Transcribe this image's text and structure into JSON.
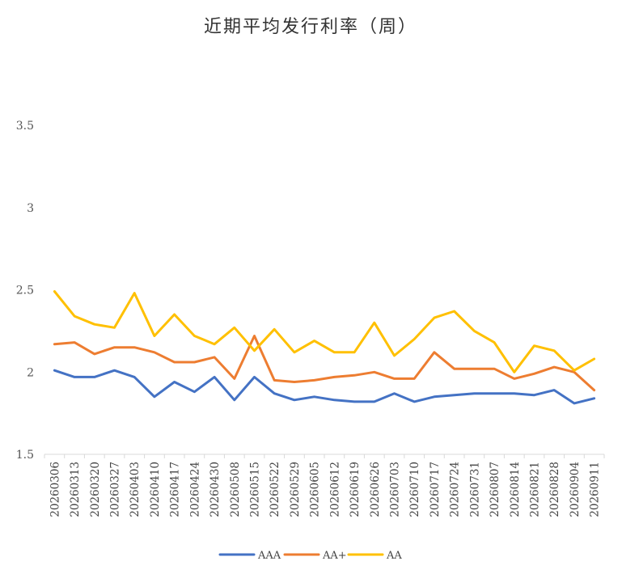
{
  "chart_data": {
    "type": "line",
    "title": "近期平均发行利率（周）",
    "xlabel": "",
    "ylabel": "",
    "ylim": [
      1.5,
      3.5
    ],
    "yticks": [
      "1.5",
      "2",
      "2.5",
      "3",
      "3.5"
    ],
    "grid": false,
    "legend_position": "bottom",
    "categories": [
      "20260306",
      "20260313",
      "20260320",
      "20260327",
      "20260403",
      "20260410",
      "20260417",
      "20260424",
      "20260430",
      "20260508",
      "20260515",
      "20260522",
      "20260529",
      "20260605",
      "20260612",
      "20260619",
      "20260626",
      "20260703",
      "20260710",
      "20260717",
      "20260724",
      "20260731",
      "20260807",
      "20260814",
      "20260821",
      "20260828",
      "20260904",
      "20260911"
    ],
    "series": [
      {
        "name": "AAA",
        "color": "#4472C4",
        "values": [
          2.01,
          1.97,
          1.97,
          2.01,
          1.97,
          1.85,
          1.94,
          1.88,
          1.97,
          1.83,
          1.97,
          1.87,
          1.83,
          1.85,
          1.83,
          1.82,
          1.82,
          1.87,
          1.82,
          1.85,
          1.86,
          1.87,
          1.87,
          1.87,
          1.86,
          1.89,
          1.81,
          1.84
        ]
      },
      {
        "name": "AA+",
        "color": "#ED7D31",
        "values": [
          2.17,
          2.18,
          2.11,
          2.15,
          2.15,
          2.12,
          2.06,
          2.06,
          2.09,
          1.96,
          2.22,
          1.95,
          1.94,
          1.95,
          1.97,
          1.98,
          2.0,
          1.96,
          1.96,
          2.12,
          2.02,
          2.02,
          2.02,
          1.96,
          1.99,
          2.03,
          2.0,
          1.89
        ]
      },
      {
        "name": "AA",
        "color": "#FFC000",
        "values": [
          2.49,
          2.34,
          2.29,
          2.27,
          2.48,
          2.22,
          2.35,
          2.22,
          2.17,
          2.27,
          2.13,
          2.26,
          2.12,
          2.19,
          2.12,
          2.12,
          2.3,
          2.1,
          2.2,
          2.33,
          2.37,
          2.25,
          2.18,
          2.0,
          2.16,
          2.13,
          2.01,
          2.08
        ]
      }
    ]
  }
}
